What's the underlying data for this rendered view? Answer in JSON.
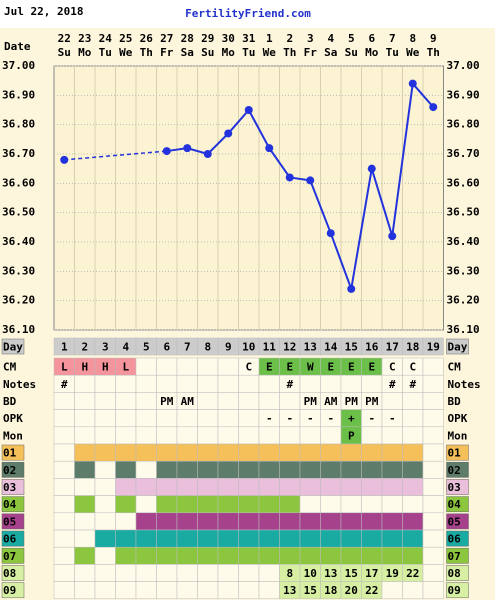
{
  "header": {
    "date": "Jul 22, 2018",
    "site": "FertilityFriend.com"
  },
  "chart_data": {
    "type": "line",
    "date_label": "Date",
    "x": [
      "22",
      "23",
      "24",
      "25",
      "26",
      "27",
      "28",
      "29",
      "30",
      "31",
      "1",
      "2",
      "3",
      "4",
      "5",
      "6",
      "7",
      "8",
      "9"
    ],
    "weekdays": [
      "Su",
      "Mo",
      "Tu",
      "We",
      "Th",
      "Fr",
      "Sa",
      "Su",
      "Mo",
      "Tu",
      "We",
      "Th",
      "Fr",
      "Sa",
      "Su",
      "Mo",
      "Tu",
      "We",
      "Th"
    ],
    "values": [
      36.68,
      null,
      null,
      null,
      null,
      36.71,
      36.72,
      36.7,
      36.77,
      36.85,
      36.72,
      36.62,
      36.61,
      36.43,
      36.24,
      36.65,
      36.42,
      36.94,
      36.86
    ],
    "color": "#2233dd",
    "gap_style": "dashed",
    "ylim": [
      36.1,
      37.0
    ],
    "yticks": [
      {
        "value": 37.0,
        "label": "37.00"
      },
      {
        "value": 36.9,
        "label": "36.90"
      },
      {
        "value": 36.8,
        "label": "36.80"
      },
      {
        "value": 36.7,
        "label": "36.70"
      },
      {
        "value": 36.6,
        "label": "36.60"
      },
      {
        "value": 36.5,
        "label": "36.50"
      },
      {
        "value": 36.4,
        "label": "36.40"
      },
      {
        "value": 36.3,
        "label": "36.30"
      },
      {
        "value": 36.2,
        "label": "36.20"
      },
      {
        "value": 36.1,
        "label": "36.10"
      }
    ],
    "grid": true
  },
  "table": {
    "rows": [
      {
        "label": "Day",
        "label_fill": "#cccccc",
        "cells": [
          "1",
          "2",
          "3",
          "4",
          "5",
          "6",
          "7",
          "8",
          "9",
          "10",
          "11",
          "12",
          "13",
          "14",
          "15",
          "16",
          "17",
          "18",
          "19"
        ],
        "fills": [
          "#cccccc",
          "#cccccc",
          "#cccccc",
          "#cccccc",
          "#cccccc",
          "#cccccc",
          "#cccccc",
          "#cccccc",
          "#cccccc",
          "#cccccc",
          "#cccccc",
          "#cccccc",
          "#cccccc",
          "#cccccc",
          "#cccccc",
          "#cccccc",
          "#cccccc",
          "#cccccc",
          "#cccccc"
        ]
      },
      {
        "label": "CM",
        "label_fill": null,
        "cells": [
          "L",
          "H",
          "H",
          "L",
          null,
          null,
          null,
          null,
          null,
          "C",
          "E",
          "E",
          "W",
          "E",
          "E",
          "E",
          "C",
          "C",
          null
        ],
        "fills": [
          "#f4949c",
          "#f4949c",
          "#f4949c",
          "#f4949c",
          null,
          null,
          null,
          null,
          null,
          null,
          "#6cc04a",
          "#6cc04a",
          "#6cc04a",
          "#6cc04a",
          "#6cc04a",
          "#6cc04a",
          null,
          null,
          null
        ]
      },
      {
        "label": "Notes",
        "label_fill": null,
        "cells": [
          "#",
          null,
          null,
          null,
          null,
          null,
          null,
          null,
          null,
          null,
          null,
          "#",
          null,
          null,
          null,
          null,
          "#",
          "#",
          null
        ],
        "fills": [
          null,
          null,
          null,
          null,
          null,
          null,
          null,
          null,
          null,
          null,
          null,
          null,
          null,
          null,
          null,
          null,
          null,
          null,
          null
        ]
      },
      {
        "label": "BD",
        "label_fill": null,
        "cells": [
          null,
          null,
          null,
          null,
          null,
          "PM",
          "AM",
          null,
          null,
          null,
          null,
          null,
          "PM",
          "AM",
          "PM",
          "PM",
          null,
          null,
          null
        ],
        "fills": [
          null,
          null,
          null,
          null,
          null,
          null,
          null,
          null,
          null,
          null,
          null,
          null,
          null,
          null,
          null,
          null,
          null,
          null,
          null
        ]
      },
      {
        "label": "OPK",
        "label_fill": null,
        "cells": [
          null,
          null,
          null,
          null,
          null,
          null,
          null,
          null,
          null,
          null,
          "-",
          "-",
          "-",
          "-",
          "+",
          "-",
          "-",
          null,
          null
        ],
        "fills": [
          null,
          null,
          null,
          null,
          null,
          null,
          null,
          null,
          null,
          null,
          null,
          null,
          null,
          null,
          "#6cc04a",
          null,
          null,
          null,
          null
        ]
      },
      {
        "label": "Mon",
        "label_fill": null,
        "cells": [
          null,
          null,
          null,
          null,
          null,
          null,
          null,
          null,
          null,
          null,
          null,
          null,
          null,
          null,
          "P",
          null,
          null,
          null,
          null
        ],
        "fills": [
          null,
          null,
          null,
          null,
          null,
          null,
          null,
          null,
          null,
          null,
          null,
          null,
          null,
          null,
          "#6cc04a",
          null,
          null,
          null,
          null
        ]
      },
      {
        "label": "01",
        "label_fill": "#f5bf5a",
        "cells": [
          null,
          null,
          null,
          null,
          null,
          null,
          null,
          null,
          null,
          null,
          null,
          null,
          null,
          null,
          null,
          null,
          null,
          null,
          null
        ],
        "fills": [
          null,
          "#f5bf5a",
          "#f5bf5a",
          "#f5bf5a",
          "#f5bf5a",
          "#f5bf5a",
          "#f5bf5a",
          "#f5bf5a",
          "#f5bf5a",
          "#f5bf5a",
          "#f5bf5a",
          "#f5bf5a",
          "#f5bf5a",
          "#f5bf5a",
          "#f5bf5a",
          "#f5bf5a",
          "#f5bf5a",
          "#f5bf5a",
          null
        ]
      },
      {
        "label": "02",
        "label_fill": "#5d7d6a",
        "cells": [
          null,
          null,
          null,
          null,
          null,
          null,
          null,
          null,
          null,
          null,
          null,
          null,
          null,
          null,
          null,
          null,
          null,
          null,
          null
        ],
        "fills": [
          null,
          "#5d7d6a",
          null,
          "#5d7d6a",
          null,
          "#5d7d6a",
          "#5d7d6a",
          "#5d7d6a",
          "#5d7d6a",
          "#5d7d6a",
          "#5d7d6a",
          "#5d7d6a",
          "#5d7d6a",
          "#5d7d6a",
          "#5d7d6a",
          "#5d7d6a",
          "#5d7d6a",
          "#5d7d6a",
          null
        ]
      },
      {
        "label": "03",
        "label_fill": "#eabfdc",
        "cells": [
          null,
          null,
          null,
          null,
          null,
          null,
          null,
          null,
          null,
          null,
          null,
          null,
          null,
          null,
          null,
          null,
          null,
          null,
          null
        ],
        "fills": [
          null,
          null,
          null,
          "#eabfdc",
          "#eabfdc",
          "#eabfdc",
          "#eabfdc",
          "#eabfdc",
          "#eabfdc",
          "#eabfdc",
          "#eabfdc",
          "#eabfdc",
          "#eabfdc",
          "#eabfdc",
          "#eabfdc",
          "#eabfdc",
          "#eabfdc",
          "#eabfdc",
          null
        ]
      },
      {
        "label": "04",
        "label_fill": "#8cc63f",
        "cells": [
          null,
          null,
          null,
          null,
          null,
          null,
          null,
          null,
          null,
          null,
          null,
          null,
          null,
          null,
          null,
          null,
          null,
          null,
          null
        ],
        "fills": [
          null,
          "#8cc63f",
          null,
          "#8cc63f",
          null,
          "#8cc63f",
          "#8cc63f",
          "#8cc63f",
          "#8cc63f",
          "#8cc63f",
          "#8cc63f",
          "#8cc63f",
          null,
          null,
          null,
          null,
          null,
          null,
          null
        ]
      },
      {
        "label": "05",
        "label_fill": "#a6428c",
        "cells": [
          null,
          null,
          null,
          null,
          null,
          null,
          null,
          null,
          null,
          null,
          null,
          null,
          null,
          null,
          null,
          null,
          null,
          null,
          null
        ],
        "fills": [
          null,
          null,
          null,
          null,
          "#a6428c",
          "#a6428c",
          "#a6428c",
          "#a6428c",
          "#a6428c",
          "#a6428c",
          "#a6428c",
          "#a6428c",
          "#a6428c",
          "#a6428c",
          "#a6428c",
          "#a6428c",
          "#a6428c",
          "#a6428c",
          null
        ]
      },
      {
        "label": "06",
        "label_fill": "#19aaa2",
        "cells": [
          null,
          null,
          null,
          null,
          null,
          null,
          null,
          null,
          null,
          null,
          null,
          null,
          null,
          null,
          null,
          null,
          null,
          null,
          null
        ],
        "fills": [
          null,
          null,
          "#19aaa2",
          "#19aaa2",
          "#19aaa2",
          "#19aaa2",
          "#19aaa2",
          "#19aaa2",
          "#19aaa2",
          "#19aaa2",
          "#19aaa2",
          "#19aaa2",
          "#19aaa2",
          "#19aaa2",
          "#19aaa2",
          "#19aaa2",
          "#19aaa2",
          "#19aaa2",
          null
        ]
      },
      {
        "label": "07",
        "label_fill": "#8cc63f",
        "cells": [
          null,
          null,
          null,
          null,
          null,
          null,
          null,
          null,
          null,
          null,
          null,
          null,
          null,
          null,
          null,
          null,
          null,
          null,
          null
        ],
        "fills": [
          null,
          "#8cc63f",
          null,
          "#8cc63f",
          "#8cc63f",
          "#8cc63f",
          "#8cc63f",
          "#8cc63f",
          "#8cc63f",
          "#8cc63f",
          "#8cc63f",
          "#8cc63f",
          "#8cc63f",
          "#8cc63f",
          "#8cc63f",
          "#8cc63f",
          "#8cc63f",
          "#8cc63f",
          null
        ]
      },
      {
        "label": "08",
        "label_fill": "#d6efa2",
        "cells": [
          null,
          null,
          null,
          null,
          null,
          null,
          null,
          null,
          null,
          null,
          null,
          "8",
          "10",
          "13",
          "15",
          "17",
          "19",
          "22",
          null
        ],
        "fills": [
          null,
          null,
          null,
          null,
          null,
          null,
          null,
          null,
          null,
          null,
          null,
          "#d6efa2",
          "#d6efa2",
          "#d6efa2",
          "#d6efa2",
          "#d6efa2",
          "#d6efa2",
          "#d6efa2",
          null
        ]
      },
      {
        "label": "09",
        "label_fill": "#d6efa2",
        "cells": [
          null,
          null,
          null,
          null,
          null,
          null,
          null,
          null,
          null,
          null,
          null,
          "13",
          "15",
          "18",
          "20",
          "22",
          null,
          null,
          null
        ],
        "fills": [
          null,
          null,
          null,
          null,
          null,
          null,
          null,
          null,
          null,
          null,
          null,
          "#d6efa2",
          "#d6efa2",
          "#d6efa2",
          "#d6efa2",
          "#d6efa2",
          null,
          null,
          null
        ]
      }
    ]
  }
}
